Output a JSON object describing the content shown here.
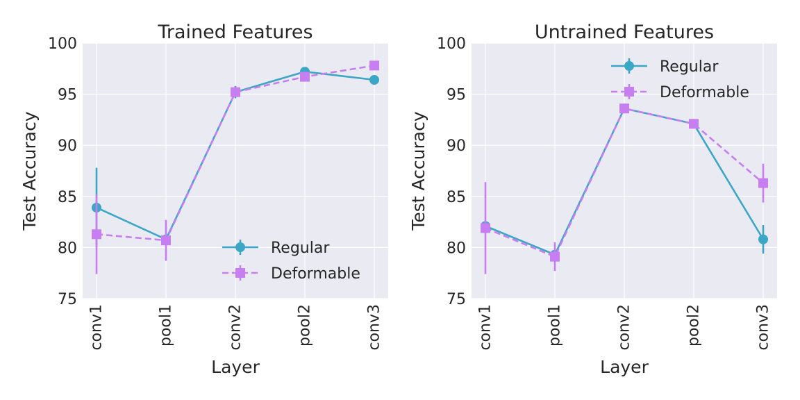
{
  "chart_data": [
    {
      "type": "line",
      "title": "Trained Features",
      "xlabel": "Layer",
      "ylabel": "Test Accuracy",
      "categories": [
        "conv1",
        "pool1",
        "conv2",
        "pool2",
        "conv3"
      ],
      "ylim": [
        75,
        100
      ],
      "yticks": [
        75,
        80,
        85,
        90,
        95,
        100
      ],
      "grid": true,
      "legend_position": "lower-right",
      "series": [
        {
          "name": "Regular",
          "values": [
            83.9,
            80.8,
            95.2,
            97.2,
            96.4
          ],
          "errors": [
            3.9,
            0.3,
            0.6,
            0.2,
            0.2
          ],
          "color": "#3ba6c6",
          "marker": "circle",
          "linestyle": "solid"
        },
        {
          "name": "Deformable",
          "values": [
            81.3,
            80.7,
            95.2,
            96.7,
            97.8
          ],
          "errors": [
            3.9,
            2.0,
            0.3,
            0.3,
            0.2
          ],
          "color": "#c77ef0",
          "marker": "square",
          "linestyle": "dashed"
        }
      ]
    },
    {
      "type": "line",
      "title": "Untrained Features",
      "xlabel": "Layer",
      "ylabel": "Test Accuracy",
      "categories": [
        "conv1",
        "pool1",
        "conv2",
        "pool2",
        "conv3"
      ],
      "ylim": [
        75,
        100
      ],
      "yticks": [
        75,
        80,
        85,
        90,
        95,
        100
      ],
      "grid": true,
      "legend_position": "upper-right",
      "series": [
        {
          "name": "Regular",
          "values": [
            82.1,
            79.3,
            93.6,
            92.1,
            80.8
          ],
          "errors": [
            0.3,
            0.3,
            0.2,
            0.2,
            1.4
          ],
          "color": "#3ba6c6",
          "marker": "circle",
          "linestyle": "solid"
        },
        {
          "name": "Deformable",
          "values": [
            81.9,
            79.1,
            93.6,
            92.1,
            86.3
          ],
          "errors": [
            4.5,
            1.4,
            0.2,
            0.2,
            1.9
          ],
          "color": "#c77ef0",
          "marker": "square",
          "linestyle": "dashed"
        }
      ]
    }
  ]
}
